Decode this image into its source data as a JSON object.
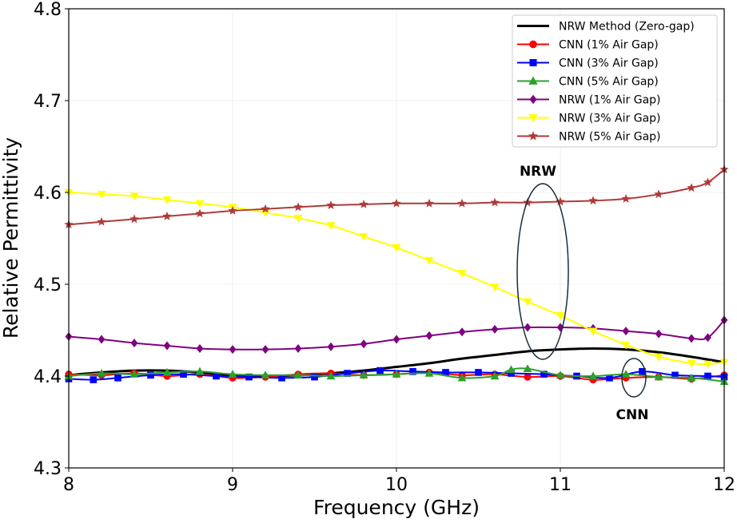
{
  "chart_data": {
    "type": "line",
    "xlabel": "Frequency (GHz)",
    "ylabel": "Relative Permittivity",
    "xlim": [
      8,
      12
    ],
    "ylim": [
      4.3,
      4.8
    ],
    "xticks": [
      8,
      9,
      10,
      11,
      12
    ],
    "xtick_labels": [
      "8",
      "9",
      "10",
      "11",
      "12"
    ],
    "yticks": [
      4.3,
      4.4,
      4.5,
      4.6,
      4.7,
      4.8
    ],
    "ytick_labels": [
      "4.3",
      "4.4",
      "4.5",
      "4.6",
      "4.7",
      "4.8"
    ],
    "grid": true,
    "legend_position": "top-right",
    "series": [
      {
        "name": "NRW Method (Zero-gap)",
        "color": "#000000",
        "marker": "none",
        "x": [
          8.0,
          8.2,
          8.4,
          8.6,
          8.8,
          9.0,
          9.2,
          9.4,
          9.6,
          9.8,
          10.0,
          10.2,
          10.4,
          10.6,
          10.8,
          11.0,
          11.2,
          11.4,
          11.6,
          11.8,
          12.0
        ],
        "values": [
          4.401,
          4.404,
          4.406,
          4.406,
          4.404,
          4.401,
          4.4,
          4.401,
          4.403,
          4.406,
          4.41,
          4.414,
          4.419,
          4.423,
          4.427,
          4.429,
          4.43,
          4.429,
          4.426,
          4.421,
          4.415
        ]
      },
      {
        "name": "CNN (1% Air Gap)",
        "color": "#ff0000",
        "marker": "circle",
        "x": [
          8.0,
          8.2,
          8.4,
          8.6,
          8.8,
          9.0,
          9.2,
          9.4,
          9.6,
          9.8,
          10.0,
          10.2,
          10.4,
          10.6,
          10.8,
          11.0,
          11.2,
          11.4,
          11.6,
          11.8,
          12.0
        ],
        "values": [
          4.402,
          4.401,
          4.403,
          4.4,
          4.402,
          4.398,
          4.399,
          4.402,
          4.403,
          4.401,
          4.402,
          4.404,
          4.401,
          4.402,
          4.399,
          4.4,
          4.396,
          4.398,
          4.399,
          4.397,
          4.401
        ]
      },
      {
        "name": "CNN (3% Air Gap)",
        "color": "#0000ff",
        "marker": "square",
        "x": [
          8.0,
          8.15,
          8.3,
          8.5,
          8.7,
          8.9,
          9.1,
          9.3,
          9.5,
          9.7,
          9.9,
          10.1,
          10.3,
          10.5,
          10.7,
          10.9,
          11.1,
          11.3,
          11.5,
          11.7,
          11.9,
          12.0
        ],
        "values": [
          4.397,
          4.396,
          4.398,
          4.401,
          4.402,
          4.4,
          4.399,
          4.398,
          4.399,
          4.403,
          4.406,
          4.405,
          4.404,
          4.404,
          4.403,
          4.402,
          4.4,
          4.398,
          4.405,
          4.401,
          4.4,
          4.399
        ]
      },
      {
        "name": "CNN (5% Air Gap)",
        "color": "#2ca02c",
        "marker": "triangle-up",
        "x": [
          8.0,
          8.2,
          8.4,
          8.6,
          8.8,
          9.0,
          9.2,
          9.4,
          9.6,
          9.8,
          10.0,
          10.2,
          10.4,
          10.6,
          10.7,
          10.8,
          11.0,
          11.2,
          11.4,
          11.6,
          11.8,
          12.0
        ],
        "values": [
          4.4,
          4.403,
          4.402,
          4.404,
          4.405,
          4.402,
          4.401,
          4.401,
          4.4,
          4.401,
          4.402,
          4.403,
          4.398,
          4.4,
          4.407,
          4.408,
          4.401,
          4.4,
          4.402,
          4.399,
          4.398,
          4.394
        ]
      },
      {
        "name": "NRW (1% Air Gap)",
        "color": "#800080",
        "marker": "diamond",
        "x": [
          8.0,
          8.2,
          8.4,
          8.6,
          8.8,
          9.0,
          9.2,
          9.4,
          9.6,
          9.8,
          10.0,
          10.2,
          10.4,
          10.6,
          10.8,
          11.0,
          11.2,
          11.4,
          11.6,
          11.8,
          11.9,
          12.0
        ],
        "values": [
          4.443,
          4.44,
          4.436,
          4.433,
          4.43,
          4.429,
          4.429,
          4.43,
          4.432,
          4.435,
          4.44,
          4.444,
          4.448,
          4.451,
          4.453,
          4.453,
          4.452,
          4.449,
          4.446,
          4.441,
          4.442,
          4.461
        ]
      },
      {
        "name": "NRW (3% Air Gap)",
        "color": "#ffff00",
        "marker": "triangle-down",
        "x": [
          8.0,
          8.2,
          8.4,
          8.6,
          8.8,
          9.0,
          9.2,
          9.4,
          9.6,
          9.8,
          10.0,
          10.2,
          10.4,
          10.6,
          10.8,
          11.0,
          11.2,
          11.4,
          11.6,
          11.8,
          11.9,
          12.0
        ],
        "values": [
          4.6,
          4.598,
          4.596,
          4.592,
          4.588,
          4.584,
          4.578,
          4.572,
          4.564,
          4.552,
          4.54,
          4.526,
          4.512,
          4.497,
          4.481,
          4.466,
          4.449,
          4.434,
          4.421,
          4.414,
          4.413,
          4.415
        ]
      },
      {
        "name": "NRW (5% Air Gap)",
        "color": "#b03a3a",
        "marker": "star",
        "x": [
          8.0,
          8.2,
          8.4,
          8.6,
          8.8,
          9.0,
          9.2,
          9.4,
          9.6,
          9.8,
          10.0,
          10.2,
          10.4,
          10.6,
          10.8,
          11.0,
          11.2,
          11.4,
          11.6,
          11.8,
          11.9,
          12.0
        ],
        "values": [
          4.565,
          4.568,
          4.571,
          4.574,
          4.577,
          4.58,
          4.582,
          4.584,
          4.586,
          4.587,
          4.588,
          4.588,
          4.588,
          4.589,
          4.589,
          4.59,
          4.591,
          4.593,
          4.598,
          4.605,
          4.611,
          4.625
        ]
      }
    ],
    "annotations": [
      {
        "text": "NRW",
        "target_x": 10.9,
        "target_y": 4.51
      },
      {
        "text": "CNN",
        "target_x": 11.45,
        "target_y": 4.4
      }
    ]
  }
}
